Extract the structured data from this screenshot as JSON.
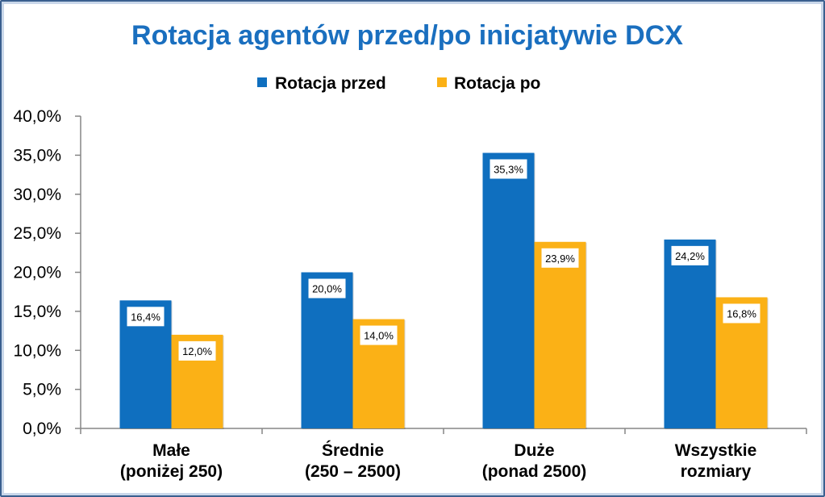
{
  "chart_data": {
    "type": "bar",
    "title": "Rotacja agentów przed/po inicjatywie DCX",
    "categories": [
      [
        "Małe",
        "(poniżej 250)"
      ],
      [
        "Średnie",
        "(250 – 2500)"
      ],
      [
        "Duże",
        "(ponad 2500)"
      ],
      [
        "Wszystkie",
        "rozmiary"
      ]
    ],
    "series": [
      {
        "name": "Rotacja przed",
        "color": "#0f6fbf",
        "values": [
          16.4,
          20.0,
          35.3,
          24.2
        ],
        "labels": [
          "16,4%",
          "20,0%",
          "35,3%",
          "24,2%"
        ]
      },
      {
        "name": "Rotacja po",
        "color": "#fbb116",
        "values": [
          12.0,
          14.0,
          23.9,
          16.8
        ],
        "labels": [
          "12,0%",
          "14,0%",
          "23,9%",
          "16,8%"
        ]
      }
    ],
    "ylim": [
      0,
      40
    ],
    "yticks": [
      0,
      5,
      10,
      15,
      20,
      25,
      30,
      35,
      40
    ],
    "ytick_labels": [
      "0,0%",
      "5,0%",
      "10,0%",
      "15,0%",
      "20,0%",
      "25,0%",
      "30,0%",
      "35,0%",
      "40,0%"
    ],
    "grid": false,
    "legend_position": "top",
    "title_color": "#1a6fbf"
  }
}
